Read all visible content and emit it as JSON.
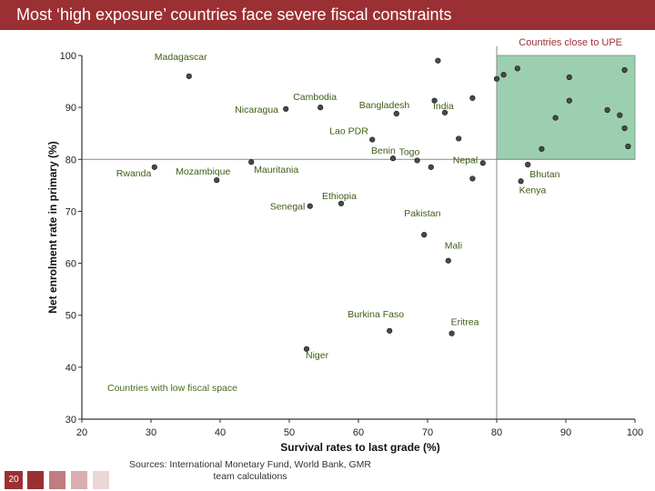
{
  "slide": {
    "title": "Most ‘high exposure’ countries face severe fiscal constraints",
    "page_number": "20",
    "source_line1": "Sources: International Monetary Fund, World Bank, GMR",
    "source_line2": "team calculations",
    "deco_colors": [
      "#9b3034",
      "#c27b7e",
      "#d9aeb0",
      "#ecd6d7"
    ]
  },
  "chart_data": {
    "type": "scatter",
    "xlabel": "Survival rates to last grade (%)",
    "ylabel": "Net enrolment rate in primary (%)",
    "xlim": [
      20,
      100
    ],
    "ylim": [
      30,
      100
    ],
    "xticks": [
      "20",
      "30",
      "40",
      "50",
      "60",
      "70",
      "80",
      "90",
      "100"
    ],
    "yticks": [
      "30",
      "40",
      "50",
      "60",
      "70",
      "80",
      "90",
      "100"
    ],
    "grid": false,
    "reference_lines": {
      "x": 80,
      "y": 80
    },
    "highlight_region": {
      "x": [
        80,
        100
      ],
      "y": [
        80,
        100
      ],
      "label": "Countries close to UPE",
      "color": "#9ccfb0"
    },
    "annotation_low_fiscal": "Countries with low fiscal space",
    "labeled_points": [
      {
        "name": "Madagascar",
        "x": 35.5,
        "y": 96.0
      },
      {
        "name": "Nicaragua",
        "x": 49.5,
        "y": 89.7
      },
      {
        "name": "Cambodia",
        "x": 54.5,
        "y": 90.0
      },
      {
        "name": "Bangladesh",
        "x": 65.5,
        "y": 88.8
      },
      {
        "name": "India",
        "x": 72.5,
        "y": 89.0
      },
      {
        "name": "Lao PDR",
        "x": 62.0,
        "y": 83.8
      },
      {
        "name": "Benin",
        "x": 65.0,
        "y": 80.2
      },
      {
        "name": "Togo",
        "x": 68.5,
        "y": 79.8
      },
      {
        "name": "Nepal",
        "x": 78.0,
        "y": 79.3
      },
      {
        "name": "Bhutan",
        "x": 84.5,
        "y": 79.0
      },
      {
        "name": "Kenya",
        "x": 83.5,
        "y": 75.8
      },
      {
        "name": "Rwanda",
        "x": 30.5,
        "y": 78.5
      },
      {
        "name": "Mozambique",
        "x": 39.5,
        "y": 76.0
      },
      {
        "name": "Mauritania",
        "x": 44.5,
        "y": 79.5
      },
      {
        "name": "Ethiopia",
        "x": 57.5,
        "y": 71.5
      },
      {
        "name": "Senegal",
        "x": 53.0,
        "y": 71.0
      },
      {
        "name": "Pakistan",
        "x": 69.5,
        "y": 65.5
      },
      {
        "name": "Mali",
        "x": 73.0,
        "y": 60.5
      },
      {
        "name": "Burkina Faso",
        "x": 64.5,
        "y": 47.0
      },
      {
        "name": "Eritrea",
        "x": 73.5,
        "y": 46.5
      },
      {
        "name": "Niger",
        "x": 52.5,
        "y": 43.5
      }
    ],
    "unlabeled_points": [
      {
        "x": 71.5,
        "y": 99.0
      },
      {
        "x": 80.0,
        "y": 95.5
      },
      {
        "x": 81.0,
        "y": 96.3
      },
      {
        "x": 83.0,
        "y": 97.5
      },
      {
        "x": 90.5,
        "y": 95.8
      },
      {
        "x": 98.5,
        "y": 97.2
      },
      {
        "x": 76.5,
        "y": 91.8
      },
      {
        "x": 71.0,
        "y": 91.3
      },
      {
        "x": 90.5,
        "y": 91.3
      },
      {
        "x": 96.0,
        "y": 89.5
      },
      {
        "x": 97.8,
        "y": 88.5
      },
      {
        "x": 88.5,
        "y": 88.0
      },
      {
        "x": 98.5,
        "y": 86.0
      },
      {
        "x": 74.5,
        "y": 84.0
      },
      {
        "x": 86.5,
        "y": 82.0
      },
      {
        "x": 99.0,
        "y": 82.5
      },
      {
        "x": 70.5,
        "y": 78.5
      },
      {
        "x": 76.5,
        "y": 76.3
      }
    ]
  }
}
